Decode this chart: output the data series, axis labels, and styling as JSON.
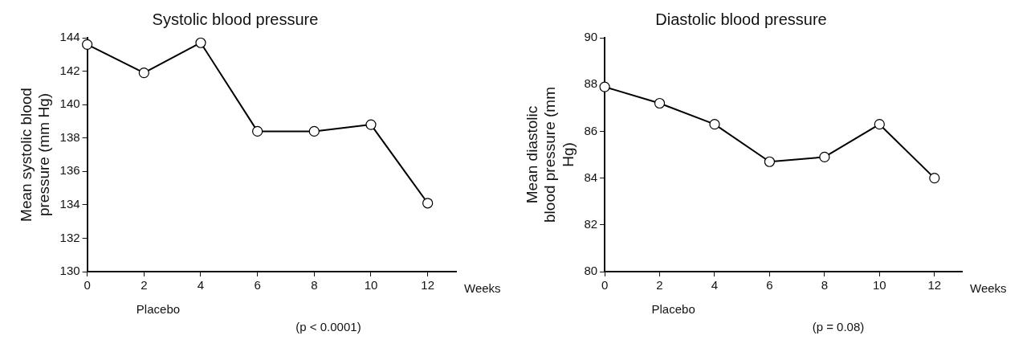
{
  "chart_data": [
    {
      "type": "line",
      "title": "Systolic blood pressure",
      "ylabel": "Mean systolic blood pressure (mm Hg)",
      "xlabel": "Weeks",
      "x": [
        0,
        2,
        4,
        6,
        8,
        10,
        12
      ],
      "series": [
        {
          "color": "#000000",
          "values": [
            143.6,
            141.9,
            143.7,
            138.4,
            138.4,
            138.8,
            134.1
          ]
        }
      ],
      "xlim": [
        0,
        13
      ],
      "xticks": [
        0,
        2,
        4,
        6,
        8,
        10,
        12
      ],
      "ylim": [
        130,
        144
      ],
      "yticks": [
        130,
        132,
        134,
        136,
        138,
        140,
        142,
        144
      ],
      "grid": false,
      "legend": false,
      "marker": "circle",
      "line_style": "solid",
      "annotations": [
        "Placebo",
        "(p < 0.0001)"
      ]
    },
    {
      "type": "line",
      "title": "Diastolic blood pressure",
      "ylabel": "Mean diastolic blood pressure (mm Hg)",
      "xlabel": "Weeks",
      "x": [
        0,
        2,
        4,
        6,
        8,
        10,
        12
      ],
      "series": [
        {
          "color": "#000000",
          "values": [
            87.9,
            87.2,
            86.3,
            84.7,
            84.9,
            86.3,
            84.0
          ]
        }
      ],
      "xlim": [
        0,
        13
      ],
      "xticks": [
        0,
        2,
        4,
        6,
        8,
        10,
        12
      ],
      "ylim": [
        80,
        90
      ],
      "yticks": [
        80,
        82,
        84,
        86,
        88,
        90
      ],
      "grid": false,
      "legend": false,
      "marker": "circle",
      "line_style": "solid",
      "annotations": [
        "Placebo",
        "(p = 0.08)"
      ]
    }
  ]
}
